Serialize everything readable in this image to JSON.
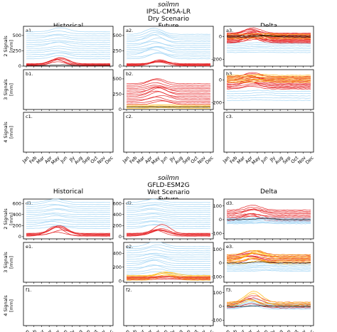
{
  "figure": {
    "top": {
      "title_var": "soilmn",
      "model": "IPSL-CM5A-LR",
      "scenario": "Dry Scenario",
      "col_titles": [
        "Historical",
        "Future",
        "Delta"
      ],
      "row_labels": [
        "2 Signals\n[mm]",
        "3 Signals\n[mm]",
        "4 Signals\n[mm]"
      ],
      "panel_ids": [
        [
          "a1.",
          "a2.",
          "a3."
        ],
        [
          "b1.",
          "b2.",
          "b3."
        ],
        [
          "c1.",
          "c2.",
          "c3."
        ]
      ]
    },
    "bottom": {
      "title_var": "soilmn",
      "model": "GFLD-ESM2G",
      "scenario": "Wet Scenario",
      "col_titles": [
        "Historical",
        "Future",
        "Delta"
      ],
      "row_labels": [
        "2 Signals\n[mm]",
        "3 Signals\n[mm]",
        "4 Signals\n[mm]"
      ],
      "panel_ids": [
        [
          "d1.",
          "d2.",
          "d3."
        ],
        [
          "e1.",
          "e2.",
          "e3."
        ],
        [
          "f1.",
          "f2.",
          "f3."
        ]
      ]
    },
    "months": [
      "Jan",
      "Feb",
      "Mar",
      "Apr",
      "May",
      "Jun",
      "Jly",
      "Aug",
      "Sep",
      "Oct",
      "Nov",
      "Dec"
    ]
  },
  "chart_data": [
    {
      "panel": "a1",
      "type": "line",
      "yticks": [
        0,
        250,
        500
      ],
      "ylim": [
        0,
        650
      ],
      "series": [
        {
          "color": "#9fd3f5",
          "count": 14,
          "base_range": [
            120,
            560
          ],
          "seasonal_peak_month": 4.5,
          "amp": 60
        },
        {
          "color": "#e41a1c",
          "count": 6,
          "base_range": [
            5,
            40
          ],
          "seasonal_peak_month": 4.5,
          "amp": 80
        },
        {
          "color": "#000000",
          "count": 1,
          "base_range": [
            10,
            10
          ]
        }
      ]
    },
    {
      "panel": "a2",
      "type": "line",
      "yticks": [
        0,
        250,
        500
      ],
      "ylim": [
        0,
        650
      ],
      "series": [
        {
          "color": "#9fd3f5",
          "count": 14,
          "base_range": [
            120,
            520
          ],
          "seasonal_peak_month": 4.0,
          "amp": 90
        },
        {
          "color": "#e41a1c",
          "count": 6,
          "base_range": [
            5,
            40
          ],
          "seasonal_peak_month": 4.5,
          "amp": 70
        }
      ]
    },
    {
      "panel": "a3",
      "type": "line",
      "yticks": [
        -200,
        0
      ],
      "ylim": [
        -260,
        90
      ],
      "series": [
        {
          "color": "#e41a1c",
          "count": 18,
          "base_range": [
            -60,
            30
          ],
          "seasonal_peak_month": 3.5,
          "amp": 50
        },
        {
          "color": "#ffb300",
          "count": 4,
          "base_range": [
            -20,
            20
          ]
        },
        {
          "color": "#000000",
          "count": 2,
          "base_range": [
            -5,
            5
          ]
        },
        {
          "color": "#9fd3f5",
          "count": 6,
          "base_range": [
            -140,
            -60
          ]
        }
      ]
    },
    {
      "panel": "b2",
      "type": "line",
      "yticks": [
        0,
        250,
        500
      ],
      "ylim": [
        0,
        650
      ],
      "series": [
        {
          "color": "#e41a1c",
          "count": 14,
          "base_range": [
            80,
            420
          ],
          "seasonal_peak_month": 4.5,
          "amp": 90
        },
        {
          "color": "#ffb300",
          "count": 4,
          "base_range": [
            20,
            70
          ]
        },
        {
          "color": "#000000",
          "count": 1,
          "base_range": [
            40,
            40
          ]
        }
      ]
    },
    {
      "panel": "b3",
      "type": "line",
      "yticks": [
        -200,
        0
      ],
      "ylim": [
        -260,
        90
      ],
      "series": [
        {
          "color": "#e41a1c",
          "count": 14,
          "base_range": [
            -80,
            30
          ],
          "seasonal_peak_month": 3.5,
          "amp": 40
        },
        {
          "color": "#ffb300",
          "count": 6,
          "base_range": [
            -20,
            40
          ]
        },
        {
          "color": "#9fd3f5",
          "count": 5,
          "base_range": [
            -180,
            -100
          ]
        }
      ]
    },
    {
      "panel": "d1",
      "type": "line",
      "yticks": [
        0,
        200,
        400,
        600
      ],
      "ylim": [
        -40,
        680
      ],
      "series": [
        {
          "color": "#9fd3f5",
          "count": 14,
          "base_range": [
            150,
            620
          ],
          "seasonal_peak_month": 4.0,
          "amp": 50
        },
        {
          "color": "#e41a1c",
          "count": 6,
          "base_range": [
            10,
            60
          ],
          "seasonal_peak_month": 4.5,
          "amp": 140
        }
      ]
    },
    {
      "panel": "d2",
      "type": "line",
      "yticks": [
        0,
        200,
        400,
        600
      ],
      "ylim": [
        -40,
        680
      ],
      "series": [
        {
          "color": "#9fd3f5",
          "count": 14,
          "base_range": [
            150,
            620
          ],
          "seasonal_peak_month": 4.0,
          "amp": 50
        },
        {
          "color": "#e41a1c",
          "count": 6,
          "base_range": [
            10,
            60
          ],
          "seasonal_peak_month": 4.5,
          "amp": 140
        }
      ]
    },
    {
      "panel": "d3",
      "type": "line",
      "yticks": [
        -100,
        0,
        100
      ],
      "ylim": [
        -140,
        150
      ],
      "series": [
        {
          "color": "#e41a1c",
          "count": 10,
          "base_range": [
            -10,
            70
          ],
          "seasonal_peak_month": 3.5,
          "amp": 40
        },
        {
          "color": "#9fd3f5",
          "count": 8,
          "base_range": [
            -30,
            10
          ]
        },
        {
          "color": "#000000",
          "count": 1,
          "base_range": [
            0,
            0
          ]
        }
      ]
    },
    {
      "panel": "e2",
      "type": "line",
      "yticks": [
        0,
        200,
        400
      ],
      "ylim": [
        -20,
        560
      ],
      "series": [
        {
          "color": "#9fd3f5",
          "count": 14,
          "base_range": [
            100,
            500
          ],
          "seasonal_peak_month": 4.0,
          "amp": 60
        },
        {
          "color": "#ffb300",
          "count": 6,
          "base_range": [
            10,
            80
          ],
          "seasonal_peak_month": 5.5,
          "amp": 60
        },
        {
          "color": "#e41a1c",
          "count": 4,
          "base_range": [
            20,
            60
          ]
        }
      ]
    },
    {
      "panel": "e3",
      "type": "line",
      "yticks": [
        -100,
        0,
        100
      ],
      "ylim": [
        -140,
        150
      ],
      "series": [
        {
          "color": "#e41a1c",
          "count": 8,
          "base_range": [
            0,
            60
          ],
          "seasonal_peak_month": 3.5,
          "amp": 30
        },
        {
          "color": "#ffb300",
          "count": 8,
          "base_range": [
            -10,
            60
          ],
          "seasonal_peak_month": 4.0,
          "amp": 40
        },
        {
          "color": "#9fd3f5",
          "count": 6,
          "base_range": [
            -60,
            -10
          ]
        },
        {
          "color": "#000000",
          "count": 1,
          "base_range": [
            0,
            0
          ]
        }
      ]
    },
    {
      "panel": "f3",
      "type": "line",
      "yticks": [
        -100,
        0,
        100
      ],
      "ylim": [
        -140,
        150
      ],
      "series": [
        {
          "color": "#9fd3f5",
          "count": 8,
          "base_range": [
            -20,
            20
          ],
          "seasonal_peak_month": 3.5,
          "amp": 30
        },
        {
          "color": "#e41a1c",
          "count": 4,
          "base_range": [
            -10,
            30
          ],
          "seasonal_peak_month": 3.5,
          "amp": 50
        },
        {
          "color": "#ffb300",
          "count": 4,
          "base_range": [
            0,
            30
          ],
          "seasonal_peak_month": 3.5,
          "amp": 70
        },
        {
          "color": "#000000",
          "count": 1,
          "base_range": [
            0,
            0
          ]
        }
      ]
    }
  ]
}
